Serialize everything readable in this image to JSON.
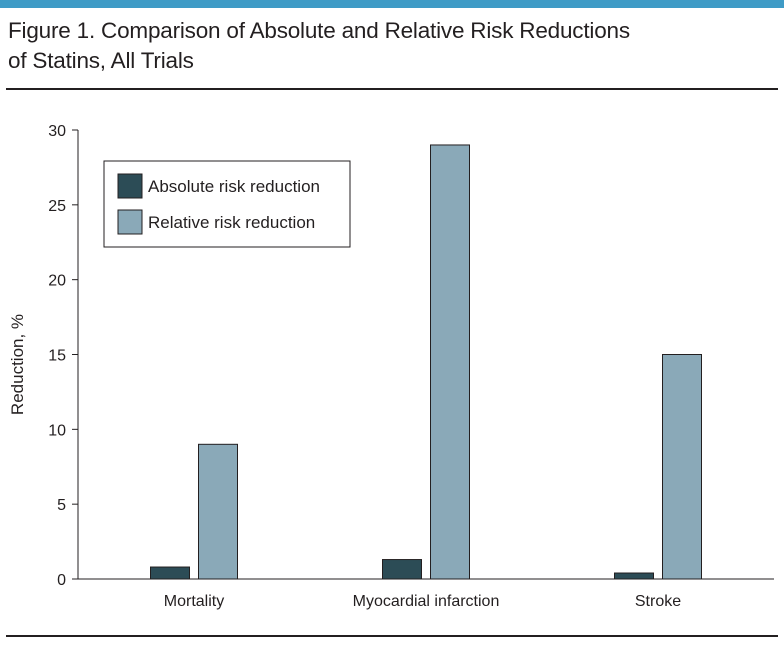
{
  "figure": {
    "title_line1": "Figure 1. Comparison of Absolute and Relative Risk Reductions",
    "title_line2": "of Statins, All Trials"
  },
  "chart_data": {
    "type": "bar",
    "categories": [
      "Mortality",
      "Myocardial infarction",
      "Stroke"
    ],
    "series": [
      {
        "name": "Absolute risk reduction",
        "values": [
          0.8,
          1.3,
          0.4
        ],
        "color": "#2c4c56"
      },
      {
        "name": "Relative risk reduction",
        "values": [
          9,
          29,
          15
        ],
        "color": "#8aa9b8"
      }
    ],
    "xlabel": "",
    "ylabel": "Reduction, %",
    "ylim": [
      0,
      30
    ],
    "yticks": [
      0,
      5,
      10,
      15,
      20,
      25,
      30
    ],
    "ytick_labels": [
      "0",
      "5",
      "10",
      "15",
      "20",
      "25",
      "30"
    ],
    "grid": false,
    "legend_position": "top-left"
  },
  "colors": {
    "accent_rule": "#3f9bc6",
    "text": "#231f20",
    "axis": "#231f20"
  }
}
